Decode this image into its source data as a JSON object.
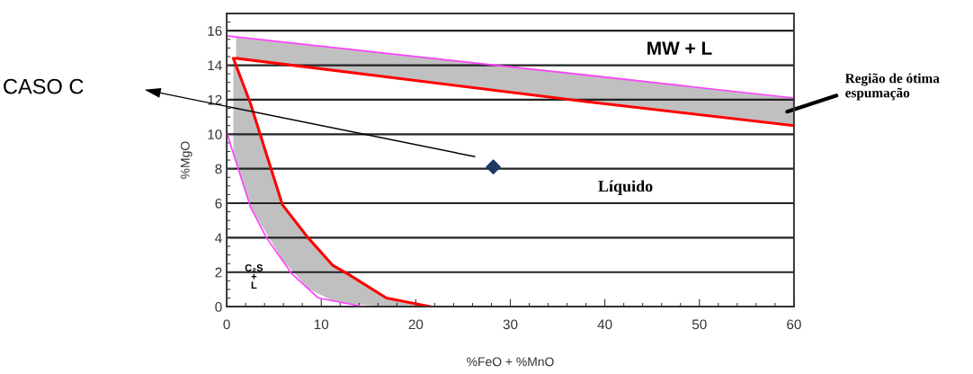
{
  "chart_data": {
    "type": "line",
    "xlabel": "%FeO + %MnO",
    "ylabel": "%MgO",
    "xlim": [
      0,
      60
    ],
    "xticks": [
      0,
      10,
      20,
      30,
      40,
      50,
      60
    ],
    "ylim": [
      0,
      17
    ],
    "yticks": [
      0,
      2,
      4,
      6,
      8,
      10,
      12,
      14,
      16
    ],
    "grid": "y",
    "series": [
      {
        "color": "#ff40ff",
        "x": [
          0,
          60
        ],
        "values": [
          15.7,
          12.1
        ]
      },
      {
        "color": "#ff0000",
        "x": [
          1,
          37.8,
          60
        ],
        "values": [
          14.4,
          11.9,
          10.5
        ],
        "lower": [
          14.4,
          11.9,
          10.5
        ],
        "upper": [
          15.6,
          13.5,
          12.1
        ]
      },
      {
        "color": "#ff40ff",
        "x": [
          0,
          0.4,
          2.5,
          4.2,
          6.9,
          9.7,
          14.5
        ],
        "values": [
          10.2,
          9.4,
          5.8,
          4.0,
          1.9,
          0.5,
          0
        ]
      },
      {
        "color": "#ff0000",
        "x": [
          0.7,
          2.5,
          5.9,
          8.6,
          11.2,
          12.8,
          16.9,
          21.6
        ],
        "values": [
          14.4,
          11.8,
          5.9,
          4.0,
          2.4,
          1.9,
          0.5,
          0
        ],
        "lower": [
          8.8,
          5.8,
          2.7,
          1.05,
          0.34,
          0.18,
          0,
          0
        ],
        "upper": [
          14.4,
          11.8,
          5.9,
          4.0,
          2.4,
          1.9,
          0.5,
          0
        ]
      },
      {
        "type": "scatter",
        "color": "#1f3864",
        "marker": "diamond",
        "x": [
          28.2
        ],
        "values": [
          8.1
        ]
      }
    ],
    "annotations": [
      "MW + L",
      "Líquido",
      "C₂S\n+\nL",
      "Região de ótima\nespumação",
      "CASO C"
    ]
  }
}
